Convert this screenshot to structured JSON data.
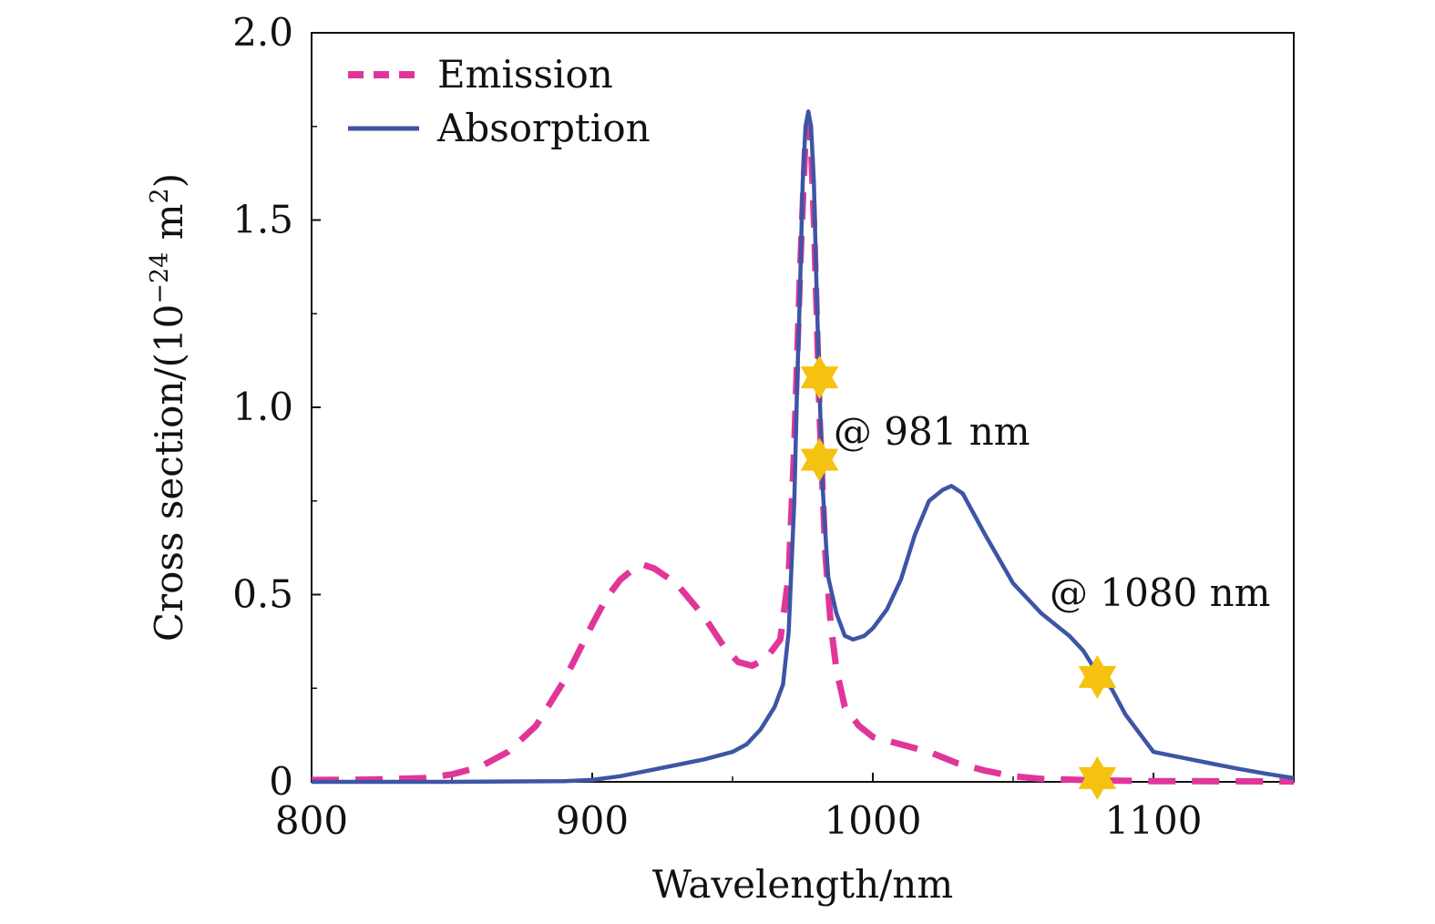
{
  "chart_data": {
    "type": "line",
    "xlabel": "Wavelength/nm",
    "ylabel": {
      "prefix": "Cross section/(10",
      "exponent": "−24",
      "unit": " m",
      "unit_exponent": "2",
      "suffix": ")"
    },
    "xlim": [
      800,
      1150
    ],
    "ylim": [
      0,
      2.0
    ],
    "x_ticks": [
      {
        "value": 800,
        "label": "800"
      },
      {
        "value": 900,
        "label": "900"
      },
      {
        "value": 1000,
        "label": "1000"
      },
      {
        "value": 1100,
        "label": "1100"
      }
    ],
    "y_ticks": [
      {
        "value": 0,
        "label": "0"
      },
      {
        "value": 0.5,
        "label": "0.5"
      },
      {
        "value": 1.0,
        "label": "1.0"
      },
      {
        "value": 1.5,
        "label": "1.5"
      },
      {
        "value": 2.0,
        "label": "2.0"
      }
    ],
    "grid": false,
    "legend_position": "top-left",
    "series": [
      {
        "name": "Emission",
        "style": "dashed",
        "color": "#e0369a",
        "points": [
          [
            800,
            0.005
          ],
          [
            820,
            0.006
          ],
          [
            840,
            0.01
          ],
          [
            850,
            0.02
          ],
          [
            860,
            0.04
          ],
          [
            870,
            0.08
          ],
          [
            880,
            0.15
          ],
          [
            890,
            0.27
          ],
          [
            900,
            0.42
          ],
          [
            905,
            0.49
          ],
          [
            910,
            0.54
          ],
          [
            915,
            0.57
          ],
          [
            918,
            0.58
          ],
          [
            922,
            0.57
          ],
          [
            930,
            0.53
          ],
          [
            940,
            0.44
          ],
          [
            947,
            0.36
          ],
          [
            952,
            0.32
          ],
          [
            957,
            0.31
          ],
          [
            962,
            0.33
          ],
          [
            967,
            0.38
          ],
          [
            970,
            0.55
          ],
          [
            972,
            0.9
          ],
          [
            974,
            1.35
          ],
          [
            976,
            1.72
          ],
          [
            977,
            1.76
          ],
          [
            978,
            1.7
          ],
          [
            979,
            1.5
          ],
          [
            980,
            1.25
          ],
          [
            981,
            0.98
          ],
          [
            983,
            0.62
          ],
          [
            985,
            0.42
          ],
          [
            987,
            0.3
          ],
          [
            990,
            0.2
          ],
          [
            995,
            0.15
          ],
          [
            1000,
            0.12
          ],
          [
            1010,
            0.1
          ],
          [
            1020,
            0.08
          ],
          [
            1030,
            0.05
          ],
          [
            1040,
            0.03
          ],
          [
            1050,
            0.015
          ],
          [
            1060,
            0.008
          ],
          [
            1080,
            0.004
          ],
          [
            1100,
            0.002
          ],
          [
            1150,
            0.001
          ]
        ]
      },
      {
        "name": "Absorption",
        "style": "solid",
        "color": "#3d55a5",
        "points": [
          [
            800,
            0.0
          ],
          [
            850,
            0.0
          ],
          [
            890,
            0.002
          ],
          [
            900,
            0.005
          ],
          [
            910,
            0.015
          ],
          [
            920,
            0.03
          ],
          [
            930,
            0.045
          ],
          [
            940,
            0.06
          ],
          [
            950,
            0.08
          ],
          [
            955,
            0.1
          ],
          [
            960,
            0.14
          ],
          [
            965,
            0.2
          ],
          [
            968,
            0.26
          ],
          [
            970,
            0.4
          ],
          [
            972,
            0.75
          ],
          [
            973,
            1.05
          ],
          [
            974,
            1.3
          ],
          [
            975,
            1.6
          ],
          [
            976,
            1.75
          ],
          [
            977,
            1.79
          ],
          [
            978,
            1.75
          ],
          [
            979,
            1.6
          ],
          [
            980,
            1.3
          ],
          [
            981,
            1.05
          ],
          [
            982,
            0.8
          ],
          [
            984,
            0.55
          ],
          [
            987,
            0.45
          ],
          [
            990,
            0.39
          ],
          [
            993,
            0.38
          ],
          [
            997,
            0.39
          ],
          [
            1000,
            0.41
          ],
          [
            1005,
            0.46
          ],
          [
            1010,
            0.54
          ],
          [
            1015,
            0.66
          ],
          [
            1020,
            0.75
          ],
          [
            1025,
            0.78
          ],
          [
            1028,
            0.79
          ],
          [
            1032,
            0.77
          ],
          [
            1040,
            0.66
          ],
          [
            1050,
            0.53
          ],
          [
            1055,
            0.49
          ],
          [
            1060,
            0.45
          ],
          [
            1070,
            0.39
          ],
          [
            1075,
            0.35
          ],
          [
            1080,
            0.29
          ],
          [
            1085,
            0.25
          ],
          [
            1090,
            0.18
          ],
          [
            1095,
            0.13
          ],
          [
            1100,
            0.08
          ],
          [
            1110,
            0.065
          ],
          [
            1120,
            0.05
          ],
          [
            1130,
            0.035
          ],
          [
            1140,
            0.022
          ],
          [
            1150,
            0.01
          ]
        ]
      }
    ],
    "markers": [
      {
        "x": 981,
        "y": 1.08,
        "color": "#f5c211",
        "shape": "six-pointed-star"
      },
      {
        "x": 981,
        "y": 0.86,
        "color": "#f5c211",
        "shape": "six-pointed-star"
      },
      {
        "x": 1080,
        "y": 0.28,
        "color": "#f5c211",
        "shape": "six-pointed-star"
      },
      {
        "x": 1080,
        "y": 0.01,
        "color": "#f5c211",
        "shape": "six-pointed-star"
      }
    ],
    "annotations": [
      {
        "text": "@ 981 nm",
        "x": 986,
        "y": 0.9
      },
      {
        "text": "@ 1080 nm",
        "x": 1063,
        "y": 0.47
      }
    ]
  }
}
